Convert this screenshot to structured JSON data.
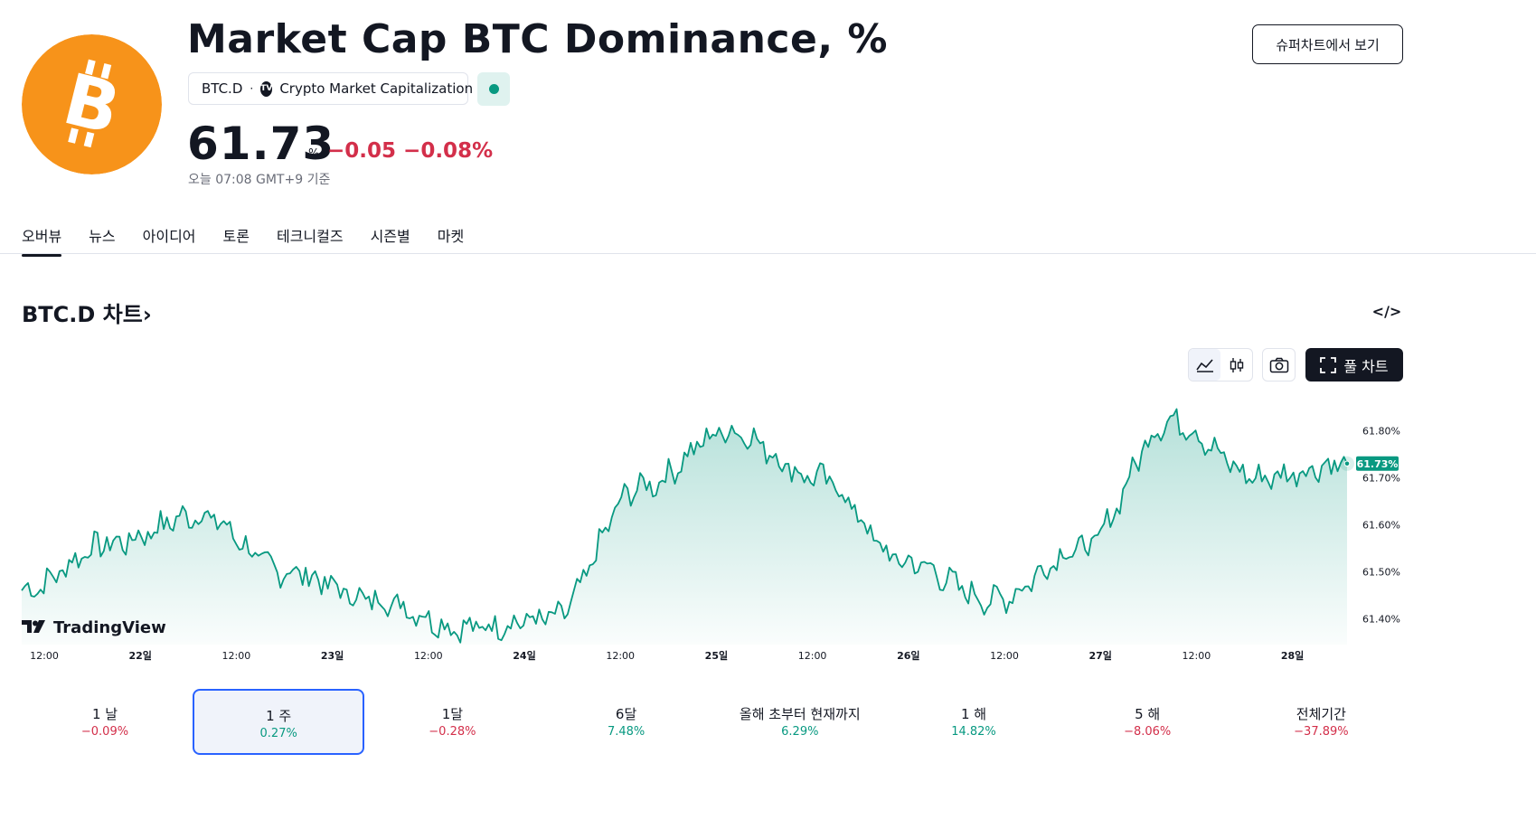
{
  "header": {
    "logo_icon": "bitcoin-icon",
    "logo_color": "#f7931a",
    "title": "Market Cap BTC Dominance, %",
    "symbol": "BTC.D",
    "separator": "·",
    "source_icon": "tradingview-source-icon",
    "source": "Crypto Market Capitalization",
    "status_color": "#089981",
    "price": "61.73",
    "unit": "%",
    "change": "−0.05",
    "change_percent": "−0.08%",
    "as_of": "오늘 07:08 GMT+9 기준",
    "supercharts_button": "슈퍼차트에서 보기"
  },
  "tabs": [
    {
      "label": "오버뷰",
      "active": true
    },
    {
      "label": "뉴스",
      "active": false
    },
    {
      "label": "아이디어",
      "active": false
    },
    {
      "label": "토론",
      "active": false
    },
    {
      "label": "테크니컬즈",
      "active": false
    },
    {
      "label": "시즌별",
      "active": false
    },
    {
      "label": "마켓",
      "active": false
    }
  ],
  "chart_section": {
    "title": "BTC.D 차트",
    "chevron": "›",
    "embed_icon": "</>",
    "toolbar": {
      "line_icon": "line-chart-icon",
      "candle_icon": "candlestick-icon",
      "camera_icon": "camera-icon",
      "fullscreen_icon": "fullscreen-icon",
      "full_chart_label": "풀 차트"
    },
    "watermark": "TradingView"
  },
  "chart_data": {
    "type": "area",
    "series": [
      {
        "line_color": "#089981",
        "x": [
          "21일 06:00",
          "12:00",
          "22일",
          "12:00",
          "23일",
          "12:00",
          "24일",
          "12:00",
          "25일",
          "12:00",
          "26일",
          "12:00",
          "27일",
          "12:00",
          "28일",
          "28일 07:00"
        ],
        "values": [
          61.46,
          61.56,
          61.62,
          61.5,
          61.44,
          61.38,
          61.4,
          61.68,
          61.8,
          61.7,
          61.52,
          61.44,
          61.55,
          61.82,
          61.7,
          61.73
        ]
      }
    ],
    "x_tick_labels": [
      "12:00",
      "22일",
      "12:00",
      "23일",
      "12:00",
      "24일",
      "12:00",
      "25일",
      "12:00",
      "26일",
      "12:00",
      "27일",
      "12:00",
      "28일"
    ],
    "y_tick_labels": [
      "61.80%",
      "61.70%",
      "61.60%",
      "61.50%",
      "61.40%"
    ],
    "y_ticks": [
      61.8,
      61.7,
      61.6,
      61.5,
      61.4
    ],
    "ylim": [
      61.345,
      61.87
    ],
    "last_value_label": "61.73%",
    "last_value": 61.73,
    "accent": "#089981"
  },
  "periods": [
    {
      "label": "1 날",
      "value": "−0.09%",
      "sign": "neg",
      "active": false
    },
    {
      "label": "1 주",
      "value": "0.27%",
      "sign": "pos",
      "active": true
    },
    {
      "label": "1달",
      "value": "−0.28%",
      "sign": "neg",
      "active": false
    },
    {
      "label": "6달",
      "value": "7.48%",
      "sign": "pos",
      "active": false
    },
    {
      "label": "올해 초부터 현재까지",
      "value": "6.29%",
      "sign": "pos",
      "active": false
    },
    {
      "label": "1 해",
      "value": "14.82%",
      "sign": "pos",
      "active": false
    },
    {
      "label": "5 해",
      "value": "−8.06%",
      "sign": "neg",
      "active": false
    },
    {
      "label": "전체기간",
      "value": "−37.89%",
      "sign": "neg",
      "active": false
    }
  ]
}
